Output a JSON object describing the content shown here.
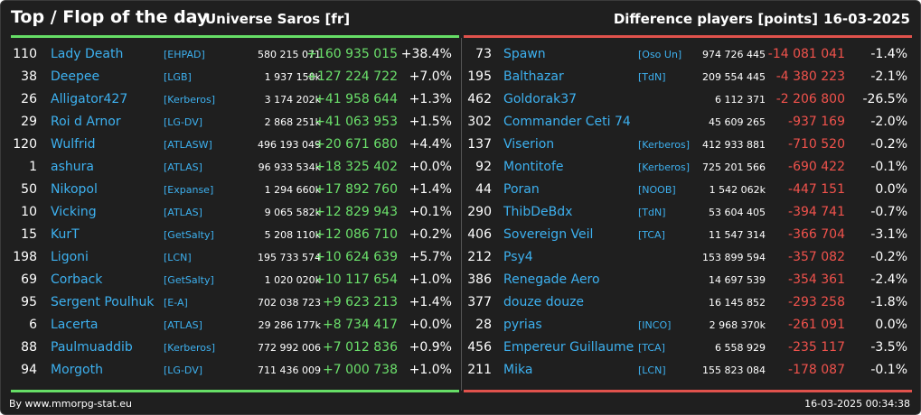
{
  "header": {
    "title": "Top / Flop of the day",
    "universe": "Universe Saros [fr]",
    "difference_label": "Difference players [points]",
    "date": "16-03-2025"
  },
  "colors": {
    "up": "#6be06b",
    "down": "#f0524c",
    "link": "#3db1f0",
    "background": "#1f1f1f"
  },
  "top": [
    {
      "rank": "110",
      "name": "Lady Death",
      "alliance": "[EHPAD]",
      "points": "580 215 071",
      "diff": "+160 935 015",
      "pct": "+38.4%"
    },
    {
      "rank": "38",
      "name": "Deepee",
      "alliance": "[LGB]",
      "points": "1 937 158k",
      "diff": "+127 224 722",
      "pct": "+7.0%"
    },
    {
      "rank": "26",
      "name": "Alligator427",
      "alliance": "[Kerberos]",
      "points": "3 174 202k",
      "diff": "+41 958 644",
      "pct": "+1.3%"
    },
    {
      "rank": "29",
      "name": "Roi d Arnor",
      "alliance": "[LG-DV]",
      "points": "2 868 251k",
      "diff": "+41 063 953",
      "pct": "+1.5%"
    },
    {
      "rank": "120",
      "name": "Wulfrid",
      "alliance": "[ATLASW]",
      "points": "496 193 049",
      "diff": "+20 671 680",
      "pct": "+4.4%"
    },
    {
      "rank": "1",
      "name": "ashura",
      "alliance": "[ATLAS]",
      "points": "96 933 534k",
      "diff": "+18 325 402",
      "pct": "+0.0%"
    },
    {
      "rank": "50",
      "name": "Nikopol",
      "alliance": "[Expanse]",
      "points": "1 294 660k",
      "diff": "+17 892 760",
      "pct": "+1.4%"
    },
    {
      "rank": "10",
      "name": "Vicking",
      "alliance": "[ATLAS]",
      "points": "9 065 582k",
      "diff": "+12 829 943",
      "pct": "+0.1%"
    },
    {
      "rank": "15",
      "name": "KurT",
      "alliance": "[GetSalty]",
      "points": "5 208 110k",
      "diff": "+12 086 710",
      "pct": "+0.2%"
    },
    {
      "rank": "198",
      "name": "Ligoni",
      "alliance": "[LCN]",
      "points": "195 733 574",
      "diff": "+10 624 639",
      "pct": "+5.7%"
    },
    {
      "rank": "69",
      "name": "Corback",
      "alliance": "[GetSalty]",
      "points": "1 020 020k",
      "diff": "+10 117 654",
      "pct": "+1.0%"
    },
    {
      "rank": "95",
      "name": "Sergent Poulhuk",
      "alliance": "[E-A]",
      "points": "702 038 723",
      "diff": "+9 623 213",
      "pct": "+1.4%"
    },
    {
      "rank": "6",
      "name": "Lacerta",
      "alliance": "[ATLAS]",
      "points": "29 286 177k",
      "diff": "+8 734 417",
      "pct": "+0.0%"
    },
    {
      "rank": "88",
      "name": "Paulmuaddib",
      "alliance": "[Kerberos]",
      "points": "772 992 006",
      "diff": "+7 012 836",
      "pct": "+0.9%"
    },
    {
      "rank": "94",
      "name": "Morgoth",
      "alliance": "[LG-DV]",
      "points": "711 436 009",
      "diff": "+7 000 738",
      "pct": "+1.0%"
    }
  ],
  "flop": [
    {
      "rank": "73",
      "name": "Spawn",
      "alliance": "[Oso Un]",
      "points": "974 726 445",
      "diff": "-14 081 041",
      "pct": "-1.4%"
    },
    {
      "rank": "195",
      "name": "Balthazar",
      "alliance": "[TdN]",
      "points": "209 554 445",
      "diff": "-4 380 223",
      "pct": "-2.1%"
    },
    {
      "rank": "462",
      "name": "Goldorak37",
      "alliance": "",
      "points": "6 112 371",
      "diff": "-2 206 800",
      "pct": "-26.5%"
    },
    {
      "rank": "302",
      "name": "Commander Ceti 74",
      "alliance": "",
      "points": "45 609 265",
      "diff": "-937 169",
      "pct": "-2.0%"
    },
    {
      "rank": "137",
      "name": "Viserion",
      "alliance": "[Kerberos]",
      "points": "412 933 881",
      "diff": "-710 520",
      "pct": "-0.2%"
    },
    {
      "rank": "92",
      "name": "Montitofe",
      "alliance": "[Kerberos]",
      "points": "725 201 566",
      "diff": "-690 422",
      "pct": "-0.1%"
    },
    {
      "rank": "44",
      "name": "Poran",
      "alliance": "[NOOB]",
      "points": "1 542 062k",
      "diff": "-447 151",
      "pct": "0.0%"
    },
    {
      "rank": "290",
      "name": "ThibDeBdx",
      "alliance": "[TdN]",
      "points": "53 604 405",
      "diff": "-394 741",
      "pct": "-0.7%"
    },
    {
      "rank": "406",
      "name": "Sovereign Veil",
      "alliance": "[TCA]",
      "points": "11 547 314",
      "diff": "-366 704",
      "pct": "-3.1%"
    },
    {
      "rank": "212",
      "name": "Psy4",
      "alliance": "",
      "points": "153 899 594",
      "diff": "-357 082",
      "pct": "-0.2%"
    },
    {
      "rank": "386",
      "name": "Renegade Aero",
      "alliance": "",
      "points": "14 697 539",
      "diff": "-354 361",
      "pct": "-2.4%"
    },
    {
      "rank": "377",
      "name": "douze douze",
      "alliance": "",
      "points": "16 145 852",
      "diff": "-293 258",
      "pct": "-1.8%"
    },
    {
      "rank": "28",
      "name": "pyrias",
      "alliance": "[INCO]",
      "points": "2 968 370k",
      "diff": "-261 091",
      "pct": "0.0%"
    },
    {
      "rank": "456",
      "name": "Empereur Guillaume",
      "alliance": "[TCA]",
      "points": "6 558 929",
      "diff": "-235 117",
      "pct": "-3.5%"
    },
    {
      "rank": "211",
      "name": "Mika",
      "alliance": "[LCN]",
      "points": "155 823 084",
      "diff": "-178 087",
      "pct": "-0.1%"
    }
  ],
  "footer": {
    "source": "By www.mmorpg-stat.eu",
    "timestamp": "16-03-2025 00:34:38"
  }
}
